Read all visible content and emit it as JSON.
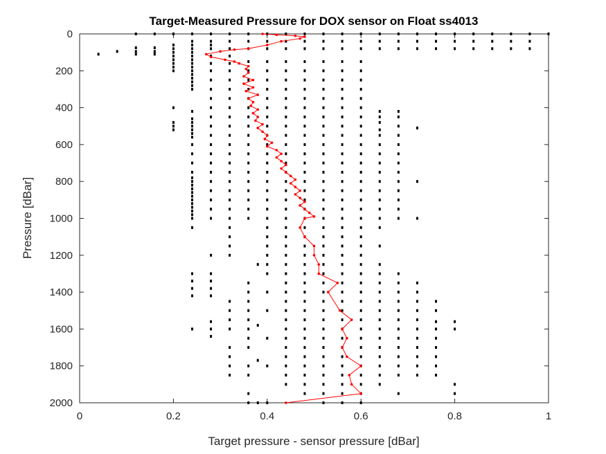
{
  "chart_data": {
    "type": "scatter",
    "title": "Target-Measured Pressure for DOX sensor on Float ss4013",
    "xlabel": "Target pressure - sensor pressure [dBar]",
    "ylabel": "Pressure [dBar]",
    "xlim": [
      0,
      1
    ],
    "ylim": [
      0,
      2000
    ],
    "y_reversed": true,
    "xticks": [
      "0",
      "0.2",
      "0.4",
      "0.6",
      "0.8",
      "1"
    ],
    "yticks": [
      "0",
      "200",
      "400",
      "600",
      "800",
      "1000",
      "1200",
      "1400",
      "1600",
      "1800",
      "2000"
    ],
    "grid": false,
    "legend": "none",
    "colors": {
      "scatter_points": "#000000",
      "profile_line": "#ff0000",
      "axes": "#262626"
    },
    "series": [
      {
        "kind": "scatter",
        "color": "#000000",
        "columns": [
          {
            "x": 0.04,
            "y": [
              110
            ]
          },
          {
            "x": 0.08,
            "y": [
              95
            ]
          },
          {
            "x": 0.12,
            "y": [
              0,
              75,
              95,
              110
            ]
          },
          {
            "x": 0.16,
            "y": [
              0,
              75,
              95,
              110
            ]
          },
          {
            "x": 0.2,
            "y": [
              0,
              60,
              80,
              100,
              120,
              140,
              160,
              180,
              200,
              400,
              480,
              500,
              520
            ]
          },
          {
            "x": 0.24,
            "y": [
              0,
              40,
              60,
              80,
              100,
              120,
              140,
              160,
              180,
              200,
              220,
              240,
              260,
              280,
              300,
              420,
              460,
              480,
              500,
              520,
              540,
              560,
              600,
              650,
              700,
              750,
              780,
              800,
              820,
              840,
              860,
              880,
              900,
              920,
              940,
              960,
              980,
              1000,
              1050,
              1300,
              1340,
              1380,
              1420,
              1600
            ]
          },
          {
            "x": 0.28,
            "y": [
              0,
              40,
              60,
              80,
              120,
              160,
              200,
              250,
              300,
              350,
              400,
              450,
              500,
              550,
              600,
              650,
              700,
              750,
              800,
              850,
              900,
              950,
              1000,
              1200,
              1300,
              1340,
              1380,
              1420,
              1560,
              1600,
              1640
            ]
          },
          {
            "x": 0.32,
            "y": [
              0,
              40,
              80,
              120,
              160,
              200,
              250,
              300,
              350,
              400,
              450,
              500,
              550,
              600,
              650,
              700,
              750,
              800,
              850,
              900,
              950,
              1000,
              1050,
              1100,
              1150,
              1200,
              1450,
              1500,
              1550,
              1600,
              1700,
              1750,
              1800,
              1850
            ]
          },
          {
            "x": 0.36,
            "y": [
              0,
              40,
              80,
              150,
              200,
              250,
              300,
              350,
              400,
              450,
              500,
              550,
              600,
              650,
              700,
              750,
              800,
              850,
              900,
              950,
              1000,
              1350,
              1400,
              1450,
              1500,
              1550,
              1600,
              1650,
              1700,
              1800,
              1850,
              1950,
              2000
            ]
          },
          {
            "x": 0.38,
            "y": [
              1250,
              1580,
              1770,
              2000
            ]
          },
          {
            "x": 0.4,
            "y": [
              0,
              40,
              80,
              150,
              200,
              250,
              300,
              350,
              400,
              450,
              500,
              550,
              600,
              650,
              700,
              750,
              800,
              850,
              900,
              950,
              1000,
              1050,
              1100,
              1150,
              1200,
              1250,
              1300,
              1400,
              1500,
              1650,
              1800,
              2000
            ]
          },
          {
            "x": 0.44,
            "y": [
              0,
              40,
              80,
              150,
              200,
              250,
              300,
              350,
              400,
              450,
              500,
              550,
              600,
              650,
              700,
              750,
              800,
              850,
              900,
              950,
              1000,
              1050,
              1100,
              1150,
              1200,
              1250,
              1300,
              1350,
              1400,
              1450,
              1500,
              1550,
              1600,
              1650,
              1700,
              1750,
              1800,
              1850,
              1900
            ]
          },
          {
            "x": 0.48,
            "y": [
              0,
              40,
              80,
              150,
              200,
              250,
              300,
              350,
              400,
              450,
              500,
              550,
              600,
              650,
              700,
              750,
              800,
              850,
              900,
              950,
              1000,
              1050,
              1100,
              1150,
              1200,
              1250,
              1300,
              1350,
              1400,
              1450,
              1500,
              1550,
              1600,
              1650,
              1700,
              1750,
              1800,
              1850,
              1900,
              1950
            ]
          },
          {
            "x": 0.52,
            "y": [
              0,
              40,
              80,
              150,
              200,
              250,
              300,
              350,
              400,
              450,
              500,
              550,
              600,
              650,
              700,
              750,
              800,
              850,
              900,
              950,
              1000,
              1050,
              1100,
              1150,
              1200,
              1250,
              1300,
              1350,
              1400,
              1450,
              1500,
              1550,
              1600,
              1650,
              1700,
              1750,
              1800,
              1850,
              1900,
              1950,
              2000
            ]
          },
          {
            "x": 0.56,
            "y": [
              0,
              40,
              80,
              150,
              200,
              250,
              300,
              350,
              400,
              450,
              500,
              550,
              600,
              650,
              700,
              750,
              800,
              850,
              900,
              950,
              1000,
              1050,
              1100,
              1150,
              1200,
              1250,
              1300,
              1350,
              1400,
              1450,
              1500,
              1550,
              1600,
              1650,
              1700,
              1750,
              1800,
              1850,
              1900,
              1950,
              2000
            ]
          },
          {
            "x": 0.6,
            "y": [
              0,
              40,
              80,
              150,
              200,
              250,
              300,
              350,
              400,
              450,
              500,
              550,
              600,
              650,
              700,
              750,
              800,
              850,
              900,
              950,
              1000,
              1050,
              1100,
              1150,
              1200,
              1250,
              1300,
              1350,
              1400,
              1450,
              1500,
              1550,
              1600,
              1650,
              1700,
              1750,
              1800,
              1850,
              1900,
              1950,
              2000
            ]
          },
          {
            "x": 0.64,
            "y": [
              0,
              40,
              80,
              420,
              450,
              480,
              520,
              550,
              600,
              650,
              700,
              750,
              800,
              850,
              900,
              950,
              1000,
              1050,
              1150,
              1250,
              1300,
              1350,
              1400,
              1450,
              1500,
              1550,
              1600,
              1650,
              1700,
              1750,
              1800,
              1850,
              1900
            ]
          },
          {
            "x": 0.68,
            "y": [
              0,
              40,
              80,
              420,
              450,
              500,
              550,
              600,
              650,
              700,
              750,
              800,
              850,
              900,
              950,
              1000,
              1300,
              1350,
              1400,
              1450,
              1500,
              1550,
              1600,
              1650,
              1700,
              1750,
              1800,
              1850,
              1950
            ]
          },
          {
            "x": 0.72,
            "y": [
              0,
              40,
              80,
              510,
              800,
              1000,
              1350,
              1400,
              1450,
              1500,
              1550,
              1600,
              1650,
              1700,
              1750,
              1800,
              1850
            ]
          },
          {
            "x": 0.76,
            "y": [
              0,
              40,
              80,
              1450,
              1500,
              1560,
              1600,
              1650,
              1700,
              1750,
              1800,
              1850
            ]
          },
          {
            "x": 0.8,
            "y": [
              0,
              40,
              80,
              1560,
              1600,
              1900,
              1950
            ]
          },
          {
            "x": 0.84,
            "y": [
              0,
              40,
              80
            ]
          },
          {
            "x": 0.88,
            "y": [
              0,
              40,
              80
            ]
          },
          {
            "x": 0.92,
            "y": [
              0,
              40,
              80
            ]
          },
          {
            "x": 0.96,
            "y": [
              0,
              40,
              80
            ]
          },
          {
            "x": 1.0,
            "y": [
              0
            ]
          }
        ]
      },
      {
        "kind": "line",
        "color": "#ff0000",
        "points": [
          [
            0.39,
            0
          ],
          [
            0.42,
            5
          ],
          [
            0.46,
            10
          ],
          [
            0.48,
            15
          ],
          [
            0.47,
            25
          ],
          [
            0.43,
            40
          ],
          [
            0.4,
            60
          ],
          [
            0.36,
            80
          ],
          [
            0.33,
            85
          ],
          [
            0.3,
            95
          ],
          [
            0.27,
            110
          ],
          [
            0.28,
            125
          ],
          [
            0.31,
            140
          ],
          [
            0.33,
            150
          ],
          [
            0.34,
            160
          ],
          [
            0.36,
            175
          ],
          [
            0.355,
            190
          ],
          [
            0.36,
            210
          ],
          [
            0.35,
            230
          ],
          [
            0.37,
            250
          ],
          [
            0.35,
            270
          ],
          [
            0.37,
            290
          ],
          [
            0.355,
            310
          ],
          [
            0.38,
            330
          ],
          [
            0.36,
            350
          ],
          [
            0.37,
            370
          ],
          [
            0.365,
            390
          ],
          [
            0.38,
            410
          ],
          [
            0.37,
            430
          ],
          [
            0.38,
            450
          ],
          [
            0.375,
            470
          ],
          [
            0.39,
            490
          ],
          [
            0.38,
            510
          ],
          [
            0.39,
            530
          ],
          [
            0.4,
            550
          ],
          [
            0.395,
            570
          ],
          [
            0.41,
            590
          ],
          [
            0.4,
            610
          ],
          [
            0.42,
            630
          ],
          [
            0.43,
            650
          ],
          [
            0.42,
            670
          ],
          [
            0.43,
            690
          ],
          [
            0.44,
            710
          ],
          [
            0.43,
            730
          ],
          [
            0.44,
            750
          ],
          [
            0.45,
            770
          ],
          [
            0.46,
            790
          ],
          [
            0.45,
            810
          ],
          [
            0.46,
            830
          ],
          [
            0.47,
            850
          ],
          [
            0.46,
            870
          ],
          [
            0.47,
            890
          ],
          [
            0.48,
            910
          ],
          [
            0.47,
            930
          ],
          [
            0.48,
            950
          ],
          [
            0.49,
            970
          ],
          [
            0.5,
            990
          ],
          [
            0.48,
            1000
          ],
          [
            0.47,
            1050
          ],
          [
            0.48,
            1100
          ],
          [
            0.5,
            1150
          ],
          [
            0.5,
            1200
          ],
          [
            0.51,
            1250
          ],
          [
            0.51,
            1300
          ],
          [
            0.55,
            1350
          ],
          [
            0.53,
            1400
          ],
          [
            0.555,
            1500
          ],
          [
            0.58,
            1550
          ],
          [
            0.56,
            1600
          ],
          [
            0.57,
            1650
          ],
          [
            0.56,
            1700
          ],
          [
            0.57,
            1750
          ],
          [
            0.6,
            1800
          ],
          [
            0.575,
            1850
          ],
          [
            0.58,
            1900
          ],
          [
            0.6,
            1950
          ],
          [
            0.44,
            2000
          ]
        ]
      }
    ]
  }
}
